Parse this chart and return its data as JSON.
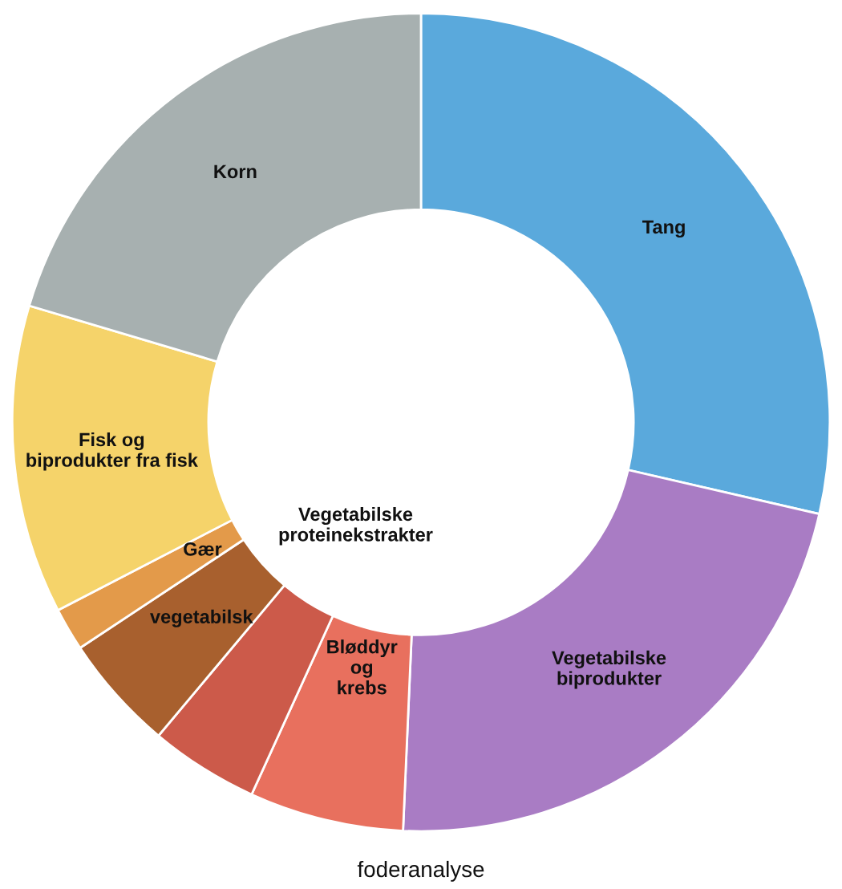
{
  "chart_data": {
    "type": "donut",
    "categories": [
      "Tang",
      "Vegetabilske biprodukter",
      "Bløddyr og krebs",
      "Vegetabilske proteinekstrakter",
      "vegetabilsk",
      "Gær",
      "Fisk og biprodukter fra fisk",
      "Korn"
    ],
    "values": [
      28.6,
      22.1,
      6.1,
      4.3,
      4.6,
      1.7,
      12.2,
      20.4
    ],
    "colors": [
      "#5aa9dc",
      "#a97cc4",
      "#e8705e",
      "#cc5a4a",
      "#a8602e",
      "#e39a4a",
      "#f5d36a",
      "#a7b0b0"
    ],
    "annotations": [
      "foderanalyse"
    ]
  }
}
